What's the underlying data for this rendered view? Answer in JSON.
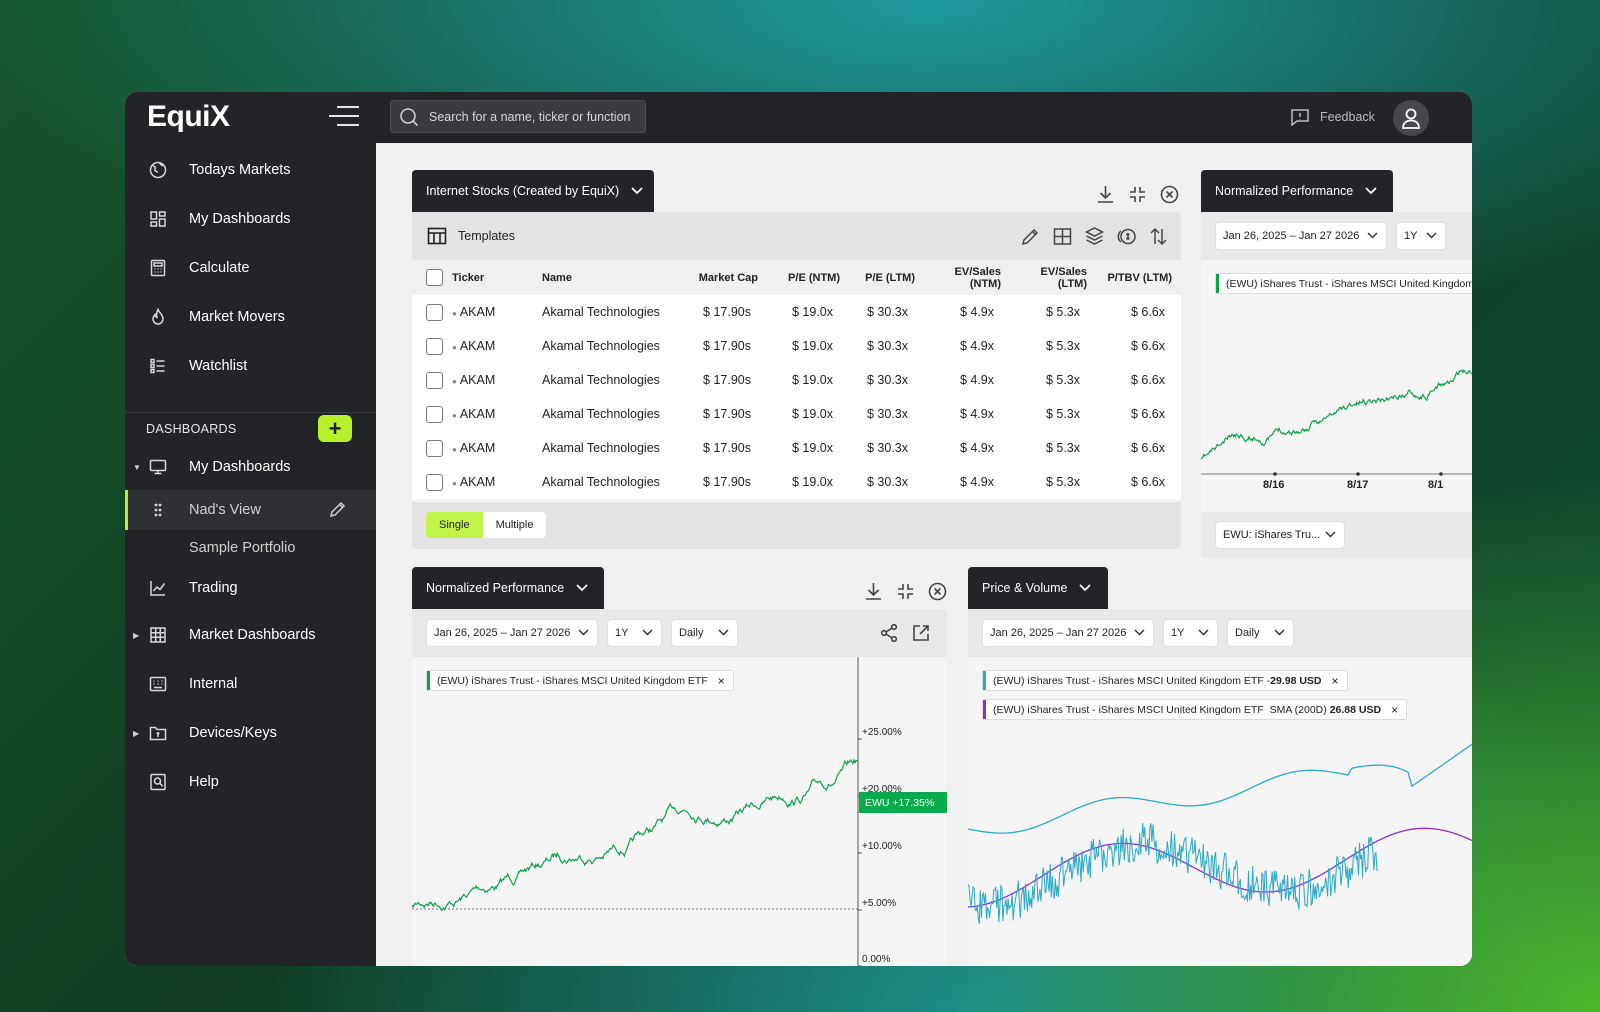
{
  "brand": {
    "logo": "EquiX"
  },
  "sidebar": {
    "nav": [
      {
        "label": "Todays Markets",
        "icon": "globe-icon"
      },
      {
        "label": "My Dashboards",
        "icon": "dashboard-grid-icon"
      },
      {
        "label": "Calculate",
        "icon": "calculator-icon"
      },
      {
        "label": "Market Movers",
        "icon": "flame-icon"
      },
      {
        "label": "Watchlist",
        "icon": "list-icon"
      }
    ],
    "dashboards_header": "DASHBOARDS",
    "tree": {
      "my_dashboards": "My Dashboards",
      "nads_view": "Nad's View",
      "sample_portfolio": "Sample Portfolio",
      "trading": "Trading",
      "market_dashboards": "Market Dashboards",
      "internal": "Internal",
      "devices_keys": "Devices/Keys",
      "help": "Help"
    }
  },
  "topbar": {
    "search_placeholder": "Search for a name, ticker or function",
    "feedback": "Feedback"
  },
  "screener": {
    "title": "Internet Stocks (Created by EquiX)",
    "templates_label": "Templates",
    "columns": [
      "Ticker",
      "Name",
      "Market Cap",
      "P/E (NTM)",
      "P/E (LTM)",
      "EV/Sales (NTM)",
      "EV/Sales (LTM)",
      "P/TBV (LTM)"
    ],
    "rows": [
      [
        "AKAM",
        "Akamal Technologies",
        "$ 17.90s",
        "$ 19.0x",
        "$ 30.3x",
        "$ 4.9x",
        "$ 5.3x",
        "$ 6.6x"
      ],
      [
        "AKAM",
        "Akamal Technologies",
        "$ 17.90s",
        "$ 19.0x",
        "$ 30.3x",
        "$ 4.9x",
        "$ 5.3x",
        "$ 6.6x"
      ],
      [
        "AKAM",
        "Akamal Technologies",
        "$ 17.90s",
        "$ 19.0x",
        "$ 30.3x",
        "$ 4.9x",
        "$ 5.3x",
        "$ 6.6x"
      ],
      [
        "AKAM",
        "Akamal Technologies",
        "$ 17.90s",
        "$ 19.0x",
        "$ 30.3x",
        "$ 4.9x",
        "$ 5.3x",
        "$ 6.6x"
      ],
      [
        "AKAM",
        "Akamal Technologies",
        "$ 17.90s",
        "$ 19.0x",
        "$ 30.3x",
        "$ 4.9x",
        "$ 5.3x",
        "$ 6.6x"
      ],
      [
        "AKAM",
        "Akamal Technologies",
        "$ 17.90s",
        "$ 19.0x",
        "$ 30.3x",
        "$ 4.9x",
        "$ 5.3x",
        "$ 6.6x"
      ]
    ],
    "mode": {
      "single": "Single",
      "multiple": "Multiple",
      "selected": "Single"
    }
  },
  "norm_small": {
    "title": "Normalized Performance",
    "date_range": "Jan 26, 2025 – Jan 27 2026",
    "period": "1Y",
    "legend": "(EWU) iShares Trust - iShares MSCI United Kingdom ETF",
    "x_ticks": [
      "8/16",
      "8/17",
      "8/1"
    ],
    "selector": "EWU: iShares Tru..."
  },
  "norm_main": {
    "title": "Normalized Performance",
    "date_range": "Jan 26, 2025 – Jan 27 2026",
    "period": "1Y",
    "interval": "Daily",
    "legend": "(EWU) iShares Trust - iShares MSCI United Kingdom ETF",
    "legend_close": "×",
    "y_ticks": [
      "+25.00%",
      "+20.00%",
      "+10.00%",
      "+5.00%",
      "0.00%"
    ],
    "badge": "EWU +17.35%",
    "badge_color": "#0bab4d"
  },
  "price_volume": {
    "title": "Price & Volume",
    "date_range": "Jan 26, 2025 – Jan 27 2026",
    "period": "1Y",
    "interval": "Daily",
    "legend1_prefix": "(EWU) iShares Trust - iShares MSCI United Kingdom ETF - ",
    "legend1_value": "29.98 USD",
    "legend2_prefix": "(EWU) iShares Trust - iShares MSCI United Kingdom ETF  SMA (200D) ",
    "legend2_value": "26.88 USD",
    "legend_close": "×",
    "colors": {
      "price": "#2ba9c6",
      "sma": "#8b2fd9"
    }
  },
  "colors": {
    "accent": "#b8f02e",
    "line_green": "#0ea14a"
  }
}
